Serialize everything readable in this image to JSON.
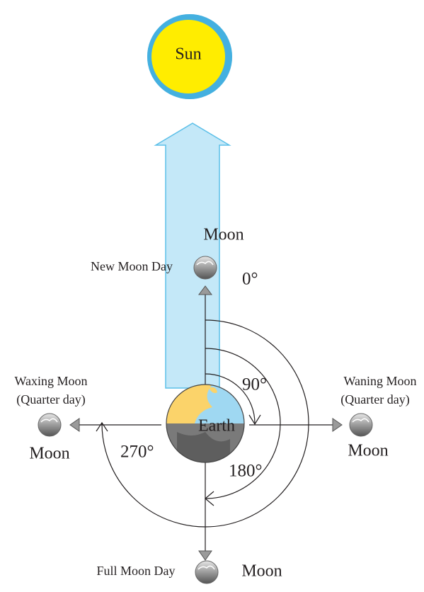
{
  "sun": {
    "label": "Sun"
  },
  "earth": {
    "label": "Earth"
  },
  "moons": [
    {
      "label": "Moon",
      "phase": "New Moon Day"
    },
    {
      "label": "Moon",
      "phase": "Waxing Moon",
      "note": "(Quarter day)"
    },
    {
      "label": "Moon",
      "phase": "Waning Moon",
      "note": "(Quarter day)"
    },
    {
      "label": "Moon",
      "phase": "Full Moon Day"
    }
  ],
  "angles": [
    "0°",
    "90°",
    "180°",
    "270°"
  ]
}
